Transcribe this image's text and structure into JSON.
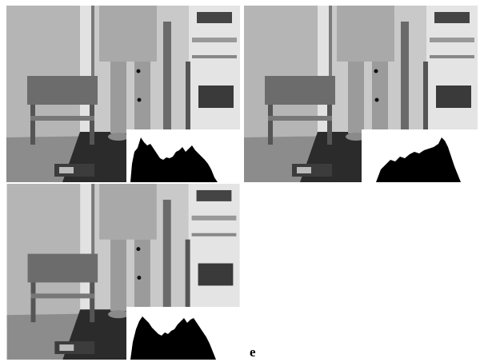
{
  "panel_label": "e"
}
